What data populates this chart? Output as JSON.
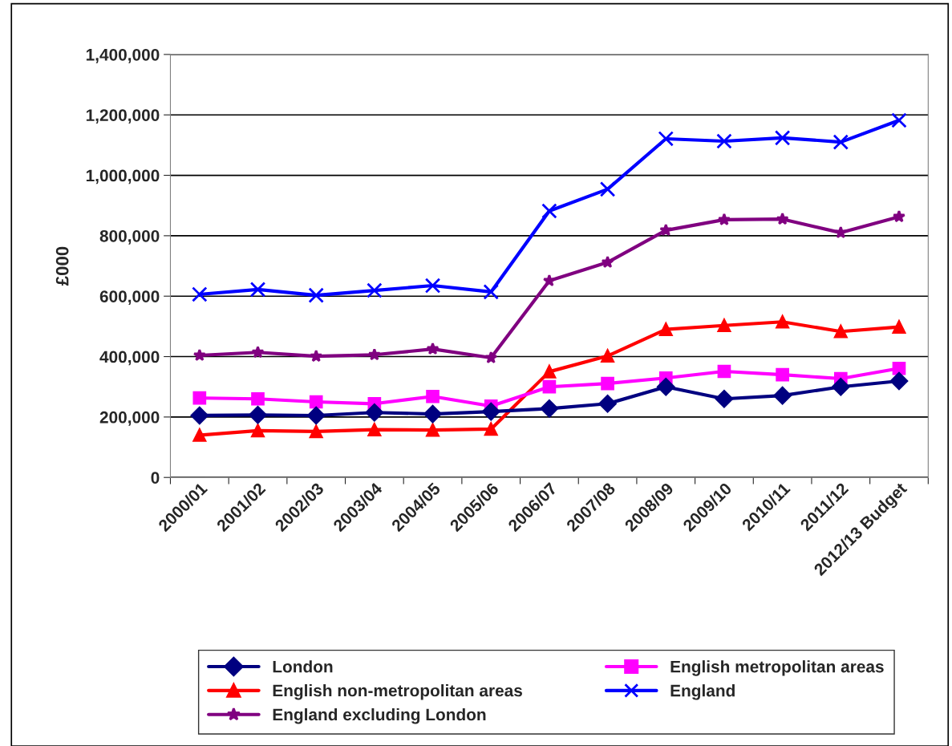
{
  "chart_data": {
    "type": "line",
    "ylabel": "£000",
    "categories": [
      "2000/01",
      "2001/02",
      "2002/03",
      "2003/04",
      "2004/05",
      "2005/06",
      "2006/07",
      "2007/08",
      "2008/09",
      "2009/10",
      "2010/11",
      "2011/12",
      "2012/13 Budget"
    ],
    "series": [
      {
        "name": "London",
        "color": "#000080",
        "marker": "diamond",
        "values": [
          205000,
          207000,
          205000,
          215000,
          210000,
          218000,
          228000,
          244000,
          300000,
          260000,
          271000,
          300000,
          319000
        ]
      },
      {
        "name": "English metropolitan areas",
        "color": "#ff00ff",
        "marker": "square",
        "values": [
          263000,
          260000,
          250000,
          244000,
          268000,
          236000,
          300000,
          311000,
          329000,
          351000,
          340000,
          327000,
          361000
        ]
      },
      {
        "name": "English non-metropolitan areas",
        "color": "#ff0000",
        "marker": "triangle",
        "values": [
          140000,
          155000,
          152000,
          158000,
          157000,
          160000,
          350000,
          402000,
          490000,
          503000,
          515000,
          483000,
          498000
        ]
      },
      {
        "name": "England",
        "color": "#0000ff",
        "marker": "cross",
        "values": [
          606000,
          622000,
          603000,
          619000,
          635000,
          614000,
          882000,
          954000,
          1121000,
          1113000,
          1124000,
          1110000,
          1182000
        ]
      },
      {
        "name": "England excluding London",
        "color": "#800080",
        "marker": "star",
        "values": [
          404000,
          414000,
          401000,
          406000,
          425000,
          396000,
          651000,
          712000,
          818000,
          853000,
          855000,
          810000,
          863000
        ]
      }
    ],
    "ylim": [
      0,
      1400000
    ],
    "yticks": [
      {
        "value": 0,
        "label": "0"
      },
      {
        "value": 200000,
        "label": "200,000"
      },
      {
        "value": 400000,
        "label": "400,000"
      },
      {
        "value": 600000,
        "label": "600,000"
      },
      {
        "value": 800000,
        "label": "800,000"
      },
      {
        "value": 1000000,
        "label": "1,000,000"
      },
      {
        "value": 1200000,
        "label": "1,200,000"
      },
      {
        "value": 1400000,
        "label": "1,400,000"
      }
    ],
    "grid": "y",
    "legend": "bottom",
    "line_style": "solid"
  }
}
